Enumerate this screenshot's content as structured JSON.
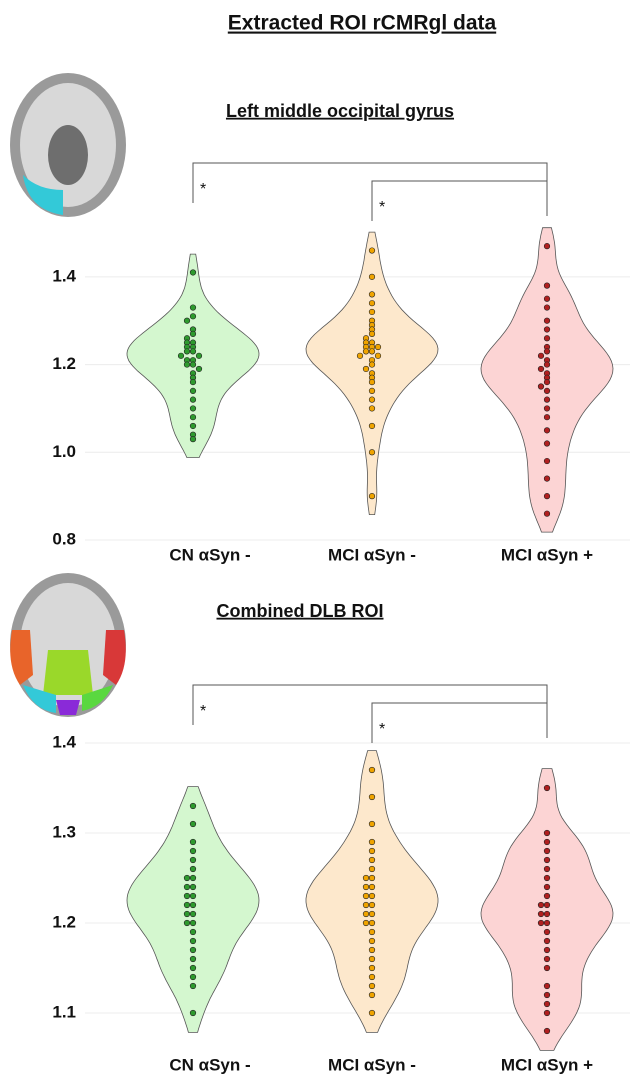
{
  "title": "Extracted ROI rCMRgl data",
  "chart_data": [
    {
      "type": "violin",
      "title": "Left middle occipital gyrus",
      "categories": [
        "CN αSyn -",
        "MCI αSyn -",
        "MCI αSyn +"
      ],
      "ylim": [
        0.8,
        1.5
      ],
      "yticks": [
        0.8,
        {
          "value": 1,
          "label": "1.0"
        },
        1.2,
        1.4
      ],
      "grid": true,
      "comparisons": [
        {
          "from": 0,
          "to": 2,
          "label": "*"
        },
        {
          "from": 1,
          "to": 2,
          "label": "*"
        }
      ],
      "series": [
        {
          "name": "CN αSyn -",
          "color": "#2e9a2e",
          "fill": "#d4f7cf",
          "values": [
            1.41,
            1.33,
            1.31,
            1.3,
            1.28,
            1.27,
            1.26,
            1.25,
            1.25,
            1.24,
            1.24,
            1.23,
            1.23,
            1.22,
            1.22,
            1.21,
            1.21,
            1.2,
            1.2,
            1.19,
            1.18,
            1.17,
            1.16,
            1.14,
            1.12,
            1.1,
            1.08,
            1.06,
            1.04,
            1.03
          ]
        },
        {
          "name": "MCI αSyn -",
          "color": "#f0a400",
          "fill": "#fde8cc",
          "values": [
            1.46,
            1.4,
            1.36,
            1.34,
            1.32,
            1.3,
            1.29,
            1.28,
            1.27,
            1.26,
            1.25,
            1.25,
            1.24,
            1.24,
            1.24,
            1.23,
            1.23,
            1.22,
            1.22,
            1.21,
            1.2,
            1.19,
            1.18,
            1.17,
            1.16,
            1.14,
            1.12,
            1.1,
            1.06,
            1.0,
            0.9
          ]
        },
        {
          "name": "MCI αSyn +",
          "color": "#b02020",
          "fill": "#fcd4d4",
          "values": [
            1.47,
            1.38,
            1.35,
            1.33,
            1.3,
            1.28,
            1.26,
            1.24,
            1.23,
            1.22,
            1.21,
            1.2,
            1.19,
            1.18,
            1.17,
            1.16,
            1.15,
            1.14,
            1.12,
            1.1,
            1.08,
            1.05,
            1.02,
            0.98,
            0.94,
            0.9,
            0.86
          ]
        }
      ]
    },
    {
      "type": "violin",
      "title": "Combined DLB ROI",
      "categories": [
        "CN αSyn -",
        "MCI αSyn -",
        "MCI αSyn +"
      ],
      "ylim": [
        1.06,
        1.42
      ],
      "yticks": [
        1.1,
        1.2,
        1.3,
        1.4
      ],
      "grid": true,
      "comparisons": [
        {
          "from": 0,
          "to": 2,
          "label": "*"
        },
        {
          "from": 1,
          "to": 2,
          "label": "*"
        }
      ],
      "series": [
        {
          "name": "CN αSyn -",
          "color": "#2e9a2e",
          "fill": "#d4f7cf",
          "values": [
            1.33,
            1.31,
            1.29,
            1.28,
            1.27,
            1.26,
            1.25,
            1.25,
            1.24,
            1.24,
            1.23,
            1.23,
            1.22,
            1.22,
            1.21,
            1.21,
            1.2,
            1.2,
            1.19,
            1.18,
            1.17,
            1.16,
            1.15,
            1.14,
            1.13,
            1.1
          ]
        },
        {
          "name": "MCI αSyn -",
          "color": "#f0a400",
          "fill": "#fde8cc",
          "values": [
            1.37,
            1.34,
            1.31,
            1.29,
            1.28,
            1.27,
            1.26,
            1.25,
            1.25,
            1.24,
            1.24,
            1.23,
            1.23,
            1.22,
            1.22,
            1.21,
            1.21,
            1.2,
            1.2,
            1.19,
            1.18,
            1.17,
            1.16,
            1.15,
            1.14,
            1.13,
            1.12,
            1.1
          ]
        },
        {
          "name": "MCI αSyn +",
          "color": "#b02020",
          "fill": "#fcd4d4",
          "values": [
            1.35,
            1.3,
            1.29,
            1.28,
            1.27,
            1.26,
            1.25,
            1.24,
            1.23,
            1.22,
            1.22,
            1.21,
            1.21,
            1.2,
            1.2,
            1.19,
            1.18,
            1.17,
            1.16,
            1.15,
            1.13,
            1.12,
            1.11,
            1.1,
            1.08
          ]
        }
      ]
    }
  ]
}
